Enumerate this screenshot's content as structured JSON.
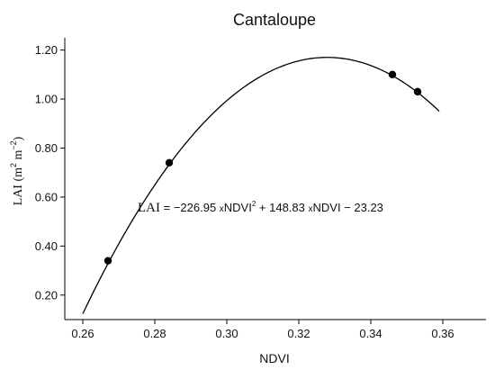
{
  "chart_data": {
    "type": "scatter",
    "title": "Cantaloupe",
    "xlabel": "NDVI",
    "ylabel": {
      "prefix": "LAI (m",
      "sup1": "2",
      "mid": " m",
      "sup2": "−2",
      "suffix": ")"
    },
    "xlim": [
      0.255,
      0.372
    ],
    "ylim": [
      0.1,
      1.25
    ],
    "x_ticks": [
      0.26,
      0.28,
      0.3,
      0.32,
      0.34,
      0.36
    ],
    "x_tick_labels": [
      "0.26",
      "0.28",
      "0.30",
      "0.32",
      "0.34",
      "0.36"
    ],
    "y_ticks": [
      0.2,
      0.4,
      0.6,
      0.8,
      1.0,
      1.2
    ],
    "y_tick_labels": [
      "0.20",
      "0.40",
      "0.60",
      "0.80",
      "1.00",
      "1.20"
    ],
    "grid": false,
    "points": {
      "x": [
        0.267,
        0.284,
        0.346,
        0.353
      ],
      "y": [
        0.34,
        0.74,
        1.1,
        1.03
      ]
    },
    "fit": {
      "a": -226.95,
      "b": 148.83,
      "c": -23.23,
      "x_range": [
        0.26,
        0.359
      ]
    },
    "equation": {
      "lhs": "LAI",
      "part1": " = −226.95 ",
      "times1": "x",
      "var1": "NDVI",
      "sup": "2",
      "part2": " + 148.83 ",
      "times2": "x",
      "part3": "NDVI − 23.23"
    },
    "colors": {
      "line": "#000000",
      "marker": "#000000",
      "axis": "#000000"
    }
  }
}
